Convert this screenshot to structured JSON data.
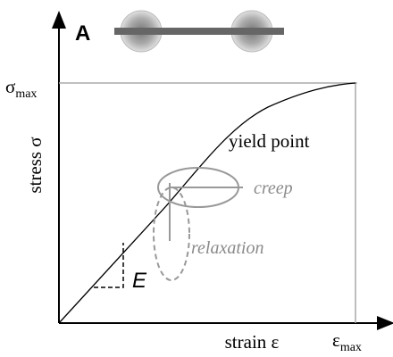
{
  "panel_label": "A",
  "y_axis": {
    "label": "stress σ",
    "max_label": {
      "symbol": "σ",
      "subscript": "max"
    }
  },
  "x_axis": {
    "label": "strain ε",
    "max_label": {
      "symbol": "ε",
      "subscript": "max"
    }
  },
  "annotations": {
    "yield": "yield point",
    "creep": "creep",
    "relaxation": "relaxation",
    "modulus": "E"
  }
}
